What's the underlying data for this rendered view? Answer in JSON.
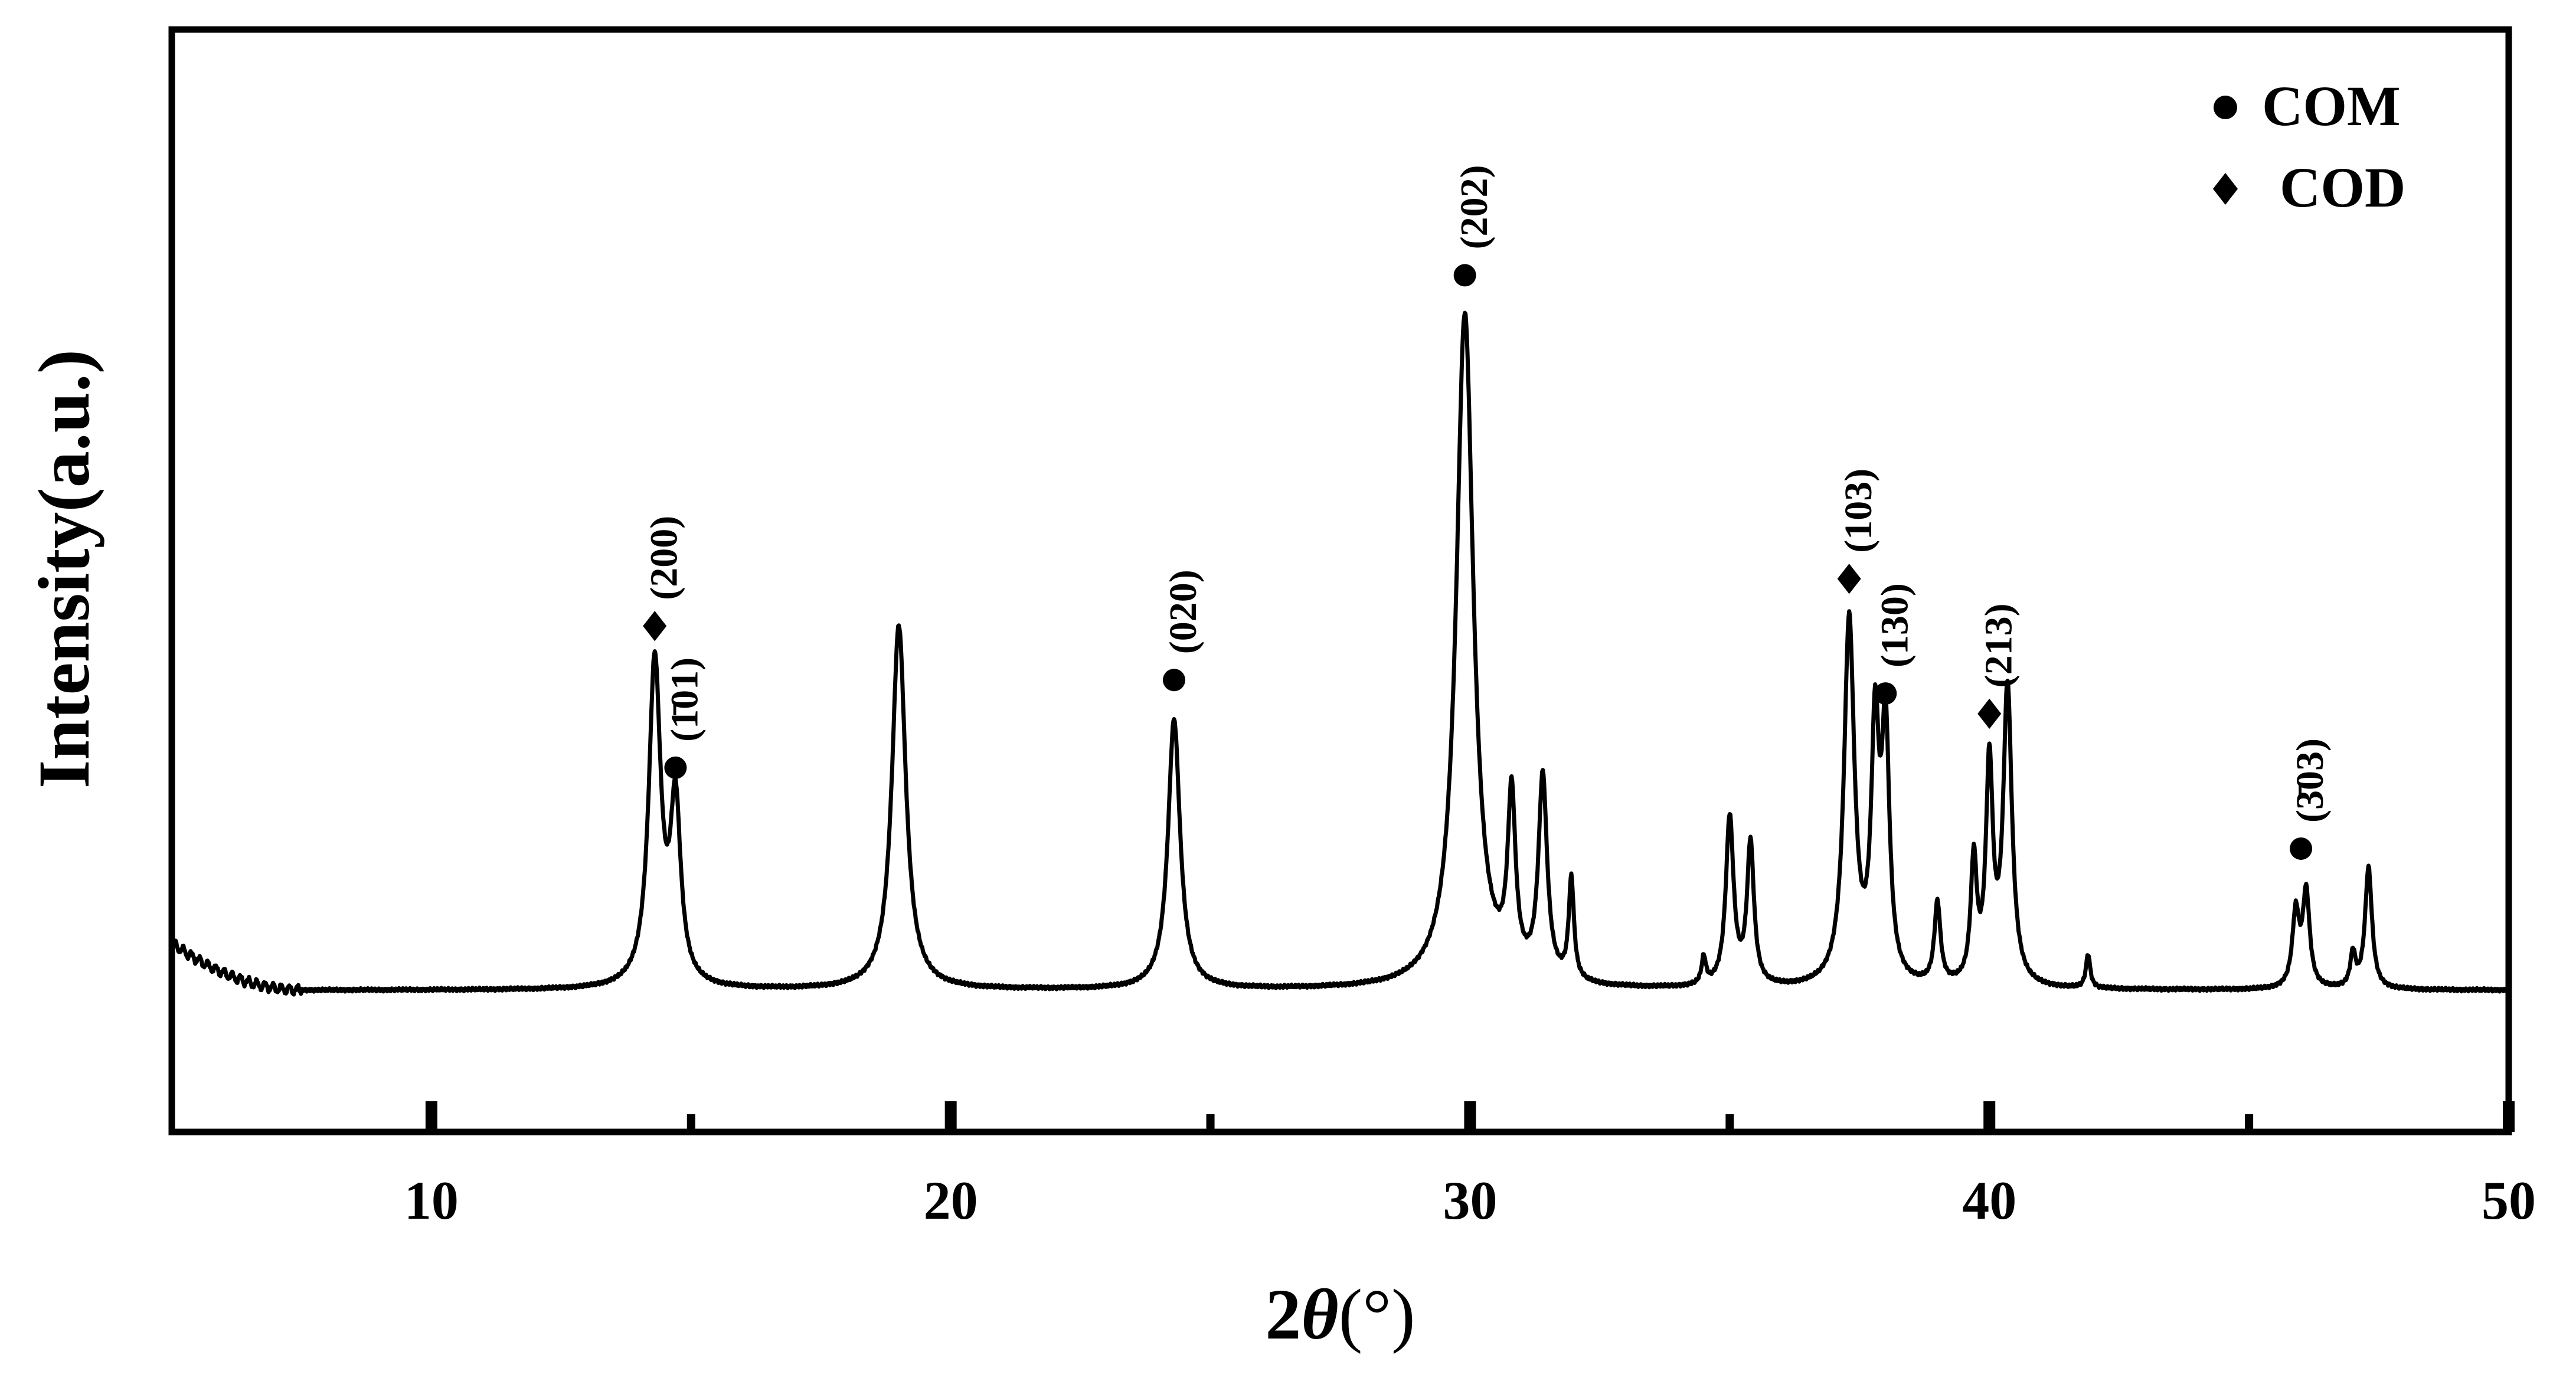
{
  "chart_data": {
    "type": "line",
    "title": "",
    "xlabel_prefix": "2",
    "xlabel_symbol": "θ",
    "xlabel_suffix": "(°)",
    "ylabel": "Intensity(a.u.)",
    "xlim": [
      5,
      50
    ],
    "ylim": [
      -0.2,
      1.0
    ],
    "xticks_major": [
      10,
      20,
      30,
      40,
      50
    ],
    "xticks_minor": [
      15,
      25,
      35,
      45
    ],
    "xtick_labels": [
      "10",
      "20",
      "30",
      "40",
      "50"
    ],
    "grid": false,
    "legend_position": "top-right",
    "legend": [
      {
        "label": "COM",
        "marker": "circle"
      },
      {
        "label": "COD",
        "marker": "diamond"
      }
    ],
    "series": [
      {
        "name": "",
        "color": "#000000",
        "baseline": 0.0,
        "low_angle_background": {
          "x_start": 5.0,
          "x_end": 7.5,
          "y_start": 0.07
        },
        "peaks": [
          {
            "x": 14.3,
            "height": 0.48,
            "width": 0.14
          },
          {
            "x": 14.7,
            "height": 0.26,
            "width": 0.12
          },
          {
            "x": 19.0,
            "height": 0.54,
            "width": 0.16
          },
          {
            "x": 24.3,
            "height": 0.4,
            "width": 0.14
          },
          {
            "x": 29.9,
            "height": 1.0,
            "width": 0.2
          },
          {
            "x": 30.8,
            "height": 0.26,
            "width": 0.09
          },
          {
            "x": 31.4,
            "height": 0.3,
            "width": 0.1
          },
          {
            "x": 31.95,
            "height": 0.15,
            "width": 0.06
          },
          {
            "x": 34.5,
            "height": 0.04,
            "width": 0.05
          },
          {
            "x": 35.0,
            "height": 0.25,
            "width": 0.09
          },
          {
            "x": 35.4,
            "height": 0.21,
            "width": 0.08
          },
          {
            "x": 37.3,
            "height": 0.54,
            "width": 0.12
          },
          {
            "x": 37.8,
            "height": 0.36,
            "width": 0.09
          },
          {
            "x": 38.0,
            "height": 0.36,
            "width": 0.09
          },
          {
            "x": 39.0,
            "height": 0.12,
            "width": 0.07
          },
          {
            "x": 39.7,
            "height": 0.18,
            "width": 0.07
          },
          {
            "x": 40.0,
            "height": 0.32,
            "width": 0.08
          },
          {
            "x": 40.35,
            "height": 0.44,
            "width": 0.1
          },
          {
            "x": 41.9,
            "height": 0.05,
            "width": 0.05
          },
          {
            "x": 45.9,
            "height": 0.11,
            "width": 0.08
          },
          {
            "x": 46.1,
            "height": 0.14,
            "width": 0.08
          },
          {
            "x": 47.0,
            "height": 0.05,
            "width": 0.06
          },
          {
            "x": 47.3,
            "height": 0.18,
            "width": 0.08
          }
        ]
      }
    ],
    "annotations": [
      {
        "x": 14.3,
        "y": 0.54,
        "marker": "diamond",
        "label": "(200)"
      },
      {
        "x": 14.7,
        "y": 0.33,
        "marker": "circle",
        "label": "(1̄01)"
      },
      {
        "x": 24.3,
        "y": 0.46,
        "marker": "circle",
        "label": "(020)"
      },
      {
        "x": 29.9,
        "y": 1.06,
        "marker": "circle",
        "label": "(202)"
      },
      {
        "x": 37.3,
        "y": 0.61,
        "marker": "diamond",
        "label": "(103)"
      },
      {
        "x": 38.0,
        "y": 0.44,
        "marker": "circle",
        "label": "(130)"
      },
      {
        "x": 40.0,
        "y": 0.41,
        "marker": "diamond",
        "label": "(213)"
      },
      {
        "x": 46.0,
        "y": 0.21,
        "marker": "circle",
        "label": "(3̄03)"
      }
    ]
  }
}
